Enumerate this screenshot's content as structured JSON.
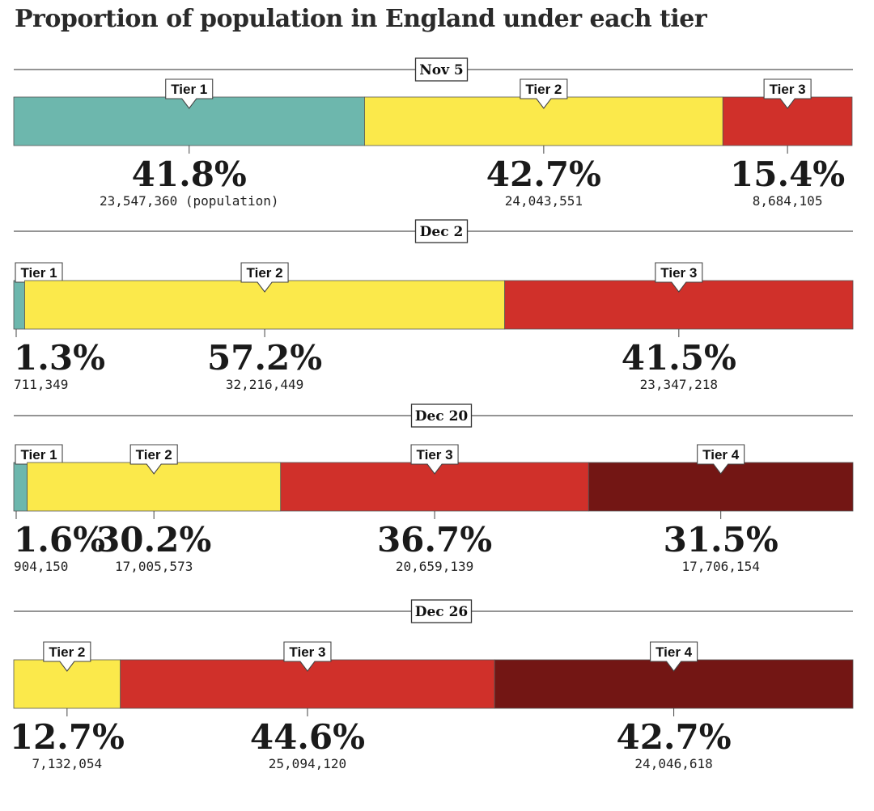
{
  "title": "Proportion of population in England under each tier",
  "chart_data": {
    "type": "stacked-bar",
    "title": "Proportion of population in England under each tier",
    "colors": {
      "Tier 1": "#6db7ad",
      "Tier 2": "#fbe94b",
      "Tier 3": "#d0302a",
      "Tier 4": "#731614"
    },
    "rows": [
      {
        "date": "Nov 5",
        "segments": [
          {
            "tier": "Tier 1",
            "percent": 41.8,
            "pct_label": "41.8%",
            "population": "23,547,360 (population)"
          },
          {
            "tier": "Tier 2",
            "percent": 42.7,
            "pct_label": "42.7%",
            "population": "24,043,551"
          },
          {
            "tier": "Tier 3",
            "percent": 15.4,
            "pct_label": "15.4%",
            "population": "8,684,105"
          }
        ]
      },
      {
        "date": "Dec 2",
        "segments": [
          {
            "tier": "Tier 1",
            "percent": 1.3,
            "pct_label": "1.3%",
            "population": "711,349"
          },
          {
            "tier": "Tier 2",
            "percent": 57.2,
            "pct_label": "57.2%",
            "population": "32,216,449"
          },
          {
            "tier": "Tier 3",
            "percent": 41.5,
            "pct_label": "41.5%",
            "population": "23,347,218"
          }
        ]
      },
      {
        "date": "Dec 20",
        "segments": [
          {
            "tier": "Tier 1",
            "percent": 1.6,
            "pct_label": "1.6%",
            "population": "904,150"
          },
          {
            "tier": "Tier 2",
            "percent": 30.2,
            "pct_label": "30.2%",
            "population": "17,005,573"
          },
          {
            "tier": "Tier 3",
            "percent": 36.7,
            "pct_label": "36.7%",
            "population": "20,659,139"
          },
          {
            "tier": "Tier 4",
            "percent": 31.5,
            "pct_label": "31.5%",
            "population": "17,706,154"
          }
        ]
      },
      {
        "date": "Dec 26",
        "segments": [
          {
            "tier": "Tier 2",
            "percent": 12.7,
            "pct_label": "12.7%",
            "population": "7,132,054"
          },
          {
            "tier": "Tier 3",
            "percent": 44.6,
            "pct_label": "44.6%",
            "population": "25,094,120"
          },
          {
            "tier": "Tier 4",
            "percent": 42.7,
            "pct_label": "42.7%",
            "population": "24,046,618"
          }
        ]
      }
    ]
  }
}
